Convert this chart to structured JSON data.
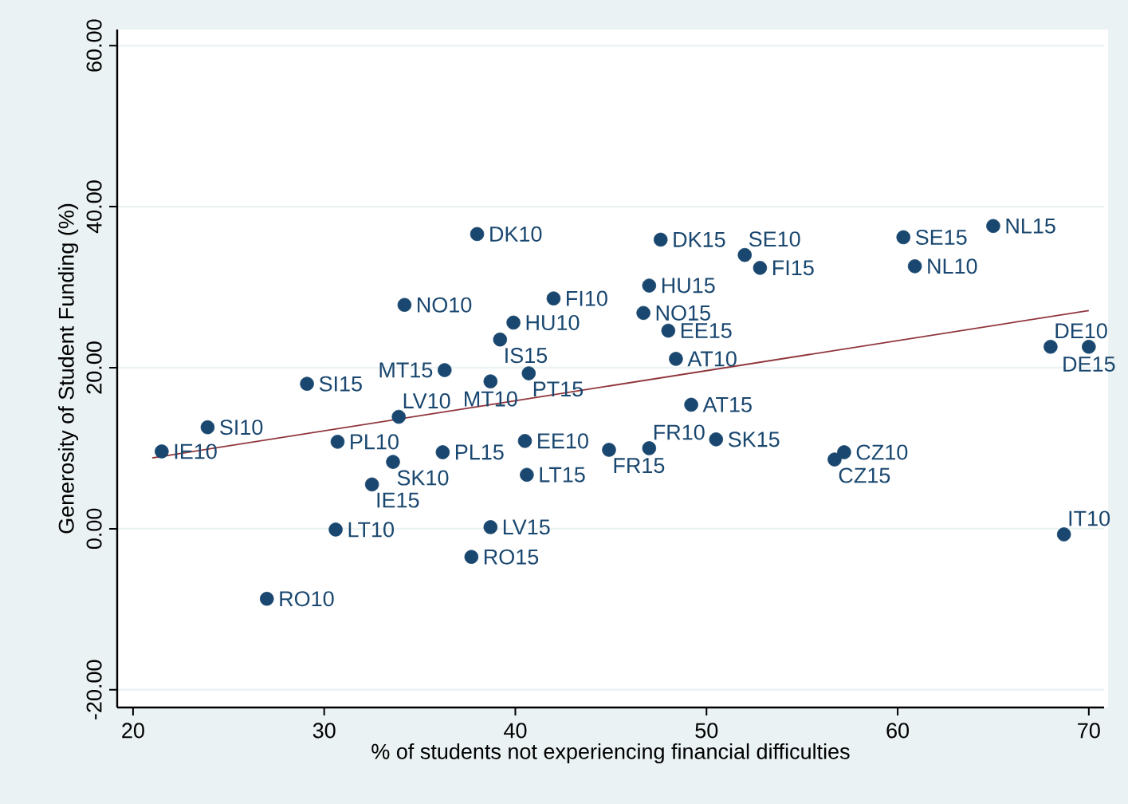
{
  "chart_data": {
    "type": "scatter",
    "xlabel": "% of students not experiencing financial difficulties",
    "ylabel": "Generosity of Student Funding (%)",
    "xlim": [
      19.17,
      70.8
    ],
    "ylim": [
      -22.2,
      62.0
    ],
    "xticks": [
      20,
      30,
      40,
      50,
      60,
      70
    ],
    "yticks": [
      {
        "value": -20,
        "label": "-20.00"
      },
      {
        "value": 0,
        "label": "0.00"
      },
      {
        "value": 20,
        "label": "20.00"
      },
      {
        "value": 40,
        "label": "40.00"
      },
      {
        "value": 60,
        "label": "60.00"
      }
    ],
    "grid": "y",
    "series": [
      {
        "type": "scatter",
        "color": "#1a476f",
        "marker": "circle",
        "x": [
          38.0,
          47.6,
          52.0,
          52.8,
          60.3,
          65.0,
          60.9,
          47.0,
          34.2,
          42.0,
          46.7,
          39.9,
          48.0,
          39.2,
          48.4,
          68.0,
          70.0,
          36.3,
          40.7,
          38.7,
          29.1,
          49.2,
          33.9,
          23.9,
          30.7,
          40.5,
          50.5,
          21.5,
          36.2,
          44.9,
          47.0,
          57.2,
          56.7,
          33.6,
          32.5,
          40.6,
          30.6,
          38.7,
          37.7,
          27.0,
          68.7
        ],
        "values": [
          36.6,
          35.9,
          34.0,
          32.4,
          36.2,
          37.6,
          32.6,
          30.2,
          27.8,
          28.6,
          26.8,
          25.6,
          24.6,
          23.5,
          21.1,
          22.6,
          22.6,
          19.7,
          19.3,
          18.3,
          18.0,
          15.4,
          13.9,
          12.6,
          10.8,
          10.9,
          11.1,
          9.6,
          9.5,
          9.8,
          10.0,
          9.5,
          8.6,
          8.3,
          5.5,
          6.7,
          -0.1,
          0.2,
          -3.5,
          -8.7,
          -0.7
        ]
      },
      {
        "type": "line",
        "color": "#90353b",
        "marker": "none",
        "x": [
          21.0,
          70.0
        ],
        "values": [
          8.8,
          27.1
        ]
      }
    ],
    "annotations": [
      {
        "text": "DK10",
        "x": 38.0,
        "y": 36.6
      },
      {
        "text": "DK15",
        "x": 47.6,
        "y": 35.9
      },
      {
        "text": "SE10",
        "x": 52.0,
        "y": 34.0
      },
      {
        "text": "FI15",
        "x": 52.8,
        "y": 32.4
      },
      {
        "text": "SE15",
        "x": 60.3,
        "y": 36.2
      },
      {
        "text": "NL15",
        "x": 65.0,
        "y": 37.6
      },
      {
        "text": "NL10",
        "x": 60.9,
        "y": 32.6
      },
      {
        "text": "HU15",
        "x": 47.0,
        "y": 30.2
      },
      {
        "text": "NO10",
        "x": 34.2,
        "y": 27.8
      },
      {
        "text": "FI10",
        "x": 42.0,
        "y": 28.6
      },
      {
        "text": "NO15",
        "x": 46.7,
        "y": 26.8
      },
      {
        "text": "HU10",
        "x": 39.9,
        "y": 25.6
      },
      {
        "text": "EE15",
        "x": 48.0,
        "y": 24.6
      },
      {
        "text": "IS15",
        "x": 39.2,
        "y": 23.5
      },
      {
        "text": "AT10",
        "x": 48.4,
        "y": 21.1
      },
      {
        "text": "DE10",
        "x": 68.0,
        "y": 22.6
      },
      {
        "text": "DE15",
        "x": 70.0,
        "y": 22.6
      },
      {
        "text": "MT15",
        "x": 36.3,
        "y": 19.7
      },
      {
        "text": "PT15",
        "x": 40.7,
        "y": 19.3
      },
      {
        "text": "MT10",
        "x": 38.7,
        "y": 18.3
      },
      {
        "text": "SI15",
        "x": 29.1,
        "y": 18.0
      },
      {
        "text": "AT15",
        "x": 49.2,
        "y": 15.4
      },
      {
        "text": "LV10",
        "x": 33.9,
        "y": 13.9
      },
      {
        "text": "SI10",
        "x": 23.9,
        "y": 12.6
      },
      {
        "text": "PL10",
        "x": 30.7,
        "y": 10.8
      },
      {
        "text": "EE10",
        "x": 40.5,
        "y": 10.9
      },
      {
        "text": "SK15",
        "x": 50.5,
        "y": 11.1
      },
      {
        "text": "IE10",
        "x": 21.5,
        "y": 9.6
      },
      {
        "text": "PL15",
        "x": 36.2,
        "y": 9.5
      },
      {
        "text": "FR15",
        "x": 44.9,
        "y": 9.8
      },
      {
        "text": "FR10",
        "x": 47.0,
        "y": 10.0
      },
      {
        "text": "CZ10",
        "x": 57.2,
        "y": 9.5
      },
      {
        "text": "CZ15",
        "x": 56.7,
        "y": 8.6
      },
      {
        "text": "SK10",
        "x": 33.6,
        "y": 8.3
      },
      {
        "text": "IE15",
        "x": 32.5,
        "y": 5.5
      },
      {
        "text": "LT15",
        "x": 40.6,
        "y": 6.7
      },
      {
        "text": "LT10",
        "x": 30.6,
        "y": -0.1
      },
      {
        "text": "LV15",
        "x": 38.7,
        "y": 0.2
      },
      {
        "text": "RO15",
        "x": 37.7,
        "y": -3.5
      },
      {
        "text": "RO10",
        "x": 27.0,
        "y": -8.7
      },
      {
        "text": "IT10",
        "x": 68.7,
        "y": -0.7
      }
    ]
  }
}
